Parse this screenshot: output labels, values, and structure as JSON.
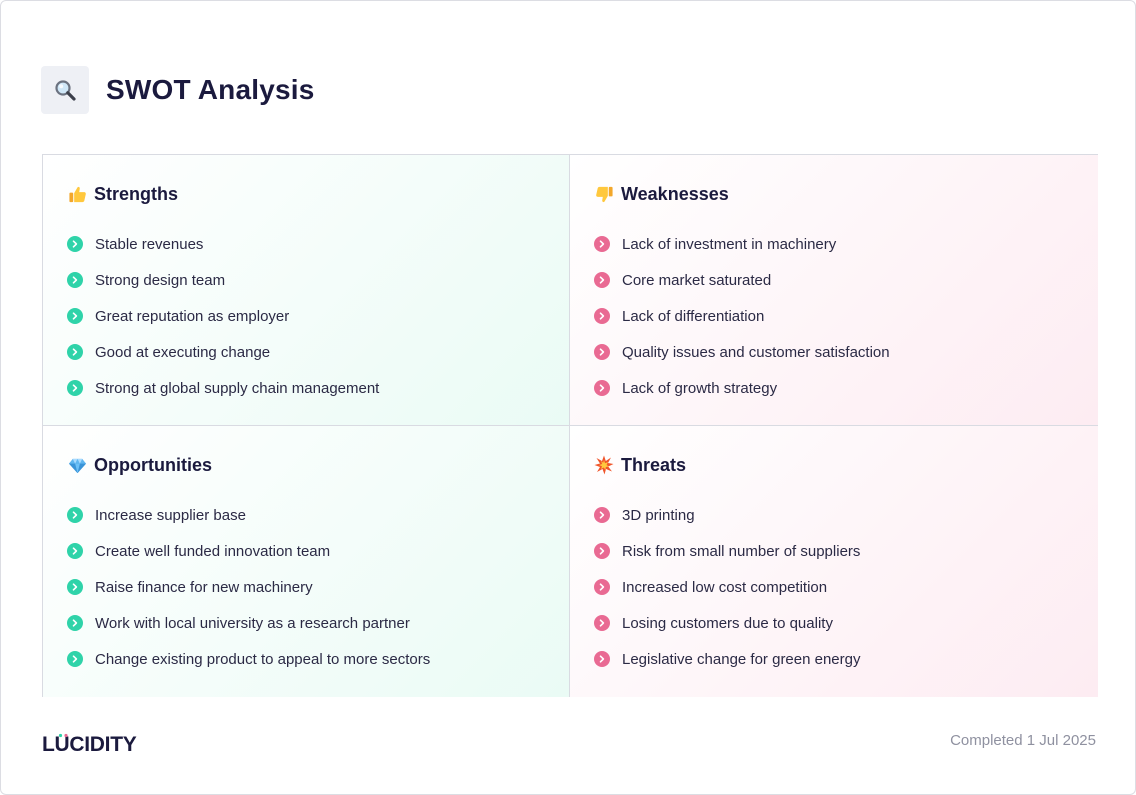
{
  "header": {
    "title": "SWOT Analysis",
    "icon": "magnifying-glass-icon"
  },
  "colors": {
    "strength_accent": "#2fd3a9",
    "weakness_accent": "#e96a93",
    "title": "#1b1a3e"
  },
  "quadrants": {
    "strengths": {
      "icon": "thumbs-up-icon",
      "title": "Strengths",
      "items": [
        "Stable revenues",
        "Strong design team",
        "Great reputation as employer",
        "Good at executing change",
        "Strong at global supply chain management"
      ]
    },
    "weaknesses": {
      "icon": "thumbs-down-icon",
      "title": "Weaknesses",
      "items": [
        "Lack of investment in machinery",
        "Core market saturated",
        "Lack of differentiation",
        "Quality issues and customer satisfaction",
        "Lack of growth strategy"
      ]
    },
    "opportunities": {
      "icon": "gem-icon",
      "title": "Opportunities",
      "items": [
        "Increase supplier base",
        "Create well funded innovation team",
        "Raise finance for new machinery",
        "Work with local university as a research partner",
        "Change existing product to appeal to more sectors"
      ]
    },
    "threats": {
      "icon": "collision-icon",
      "title": "Threats",
      "items": [
        "3D printing",
        "Risk from small number of suppliers",
        "Increased low cost competition",
        "Losing customers due to quality",
        "Legislative change for green energy"
      ]
    }
  },
  "footer": {
    "logo": "LUCIDITY",
    "completed": "Completed 1 Jul 2025"
  }
}
